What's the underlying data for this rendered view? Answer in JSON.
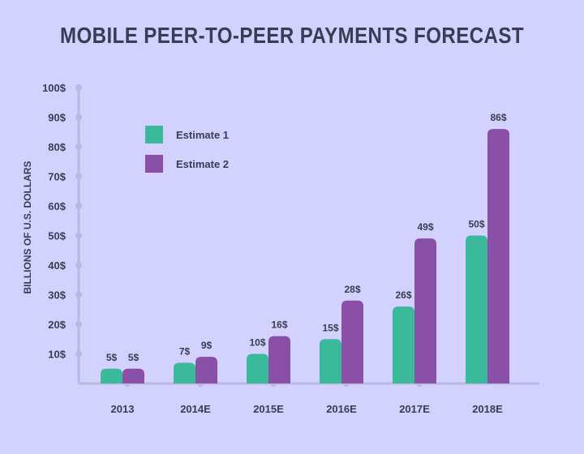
{
  "chart_data": {
    "type": "bar",
    "title": "MOBILE PEER-TO-PEER PAYMENTS FORECAST",
    "xlabel": "",
    "ylabel": "BILLIONS OF U.S. DOLLARS",
    "categories": [
      "2013",
      "2014E",
      "2015E",
      "2016E",
      "2017E",
      "2018E"
    ],
    "series": [
      {
        "name": "Estimate 1",
        "color": "#3ab99b",
        "values": [
          5,
          7,
          10,
          15,
          26,
          50
        ],
        "labels": [
          "5$",
          "7$",
          "10$",
          "15$",
          "26$",
          "50$"
        ]
      },
      {
        "name": "Estimate 2",
        "color": "#8a4fa6",
        "values": [
          5,
          9,
          16,
          28,
          49,
          86
        ],
        "labels": [
          "5$",
          "9$",
          "16$",
          "28$",
          "49$",
          "86$"
        ]
      }
    ],
    "ylim": [
      0,
      100
    ],
    "yticks": [
      "10$",
      "20$",
      "30$",
      "40$",
      "50$",
      "60$",
      "70$",
      "80$",
      "90$",
      "100$"
    ],
    "legend_position": "top-left",
    "grid": false
  },
  "colors": {
    "background": "#d2d1ff",
    "axis": "#b9b9dc",
    "text": "#3a3d52"
  }
}
